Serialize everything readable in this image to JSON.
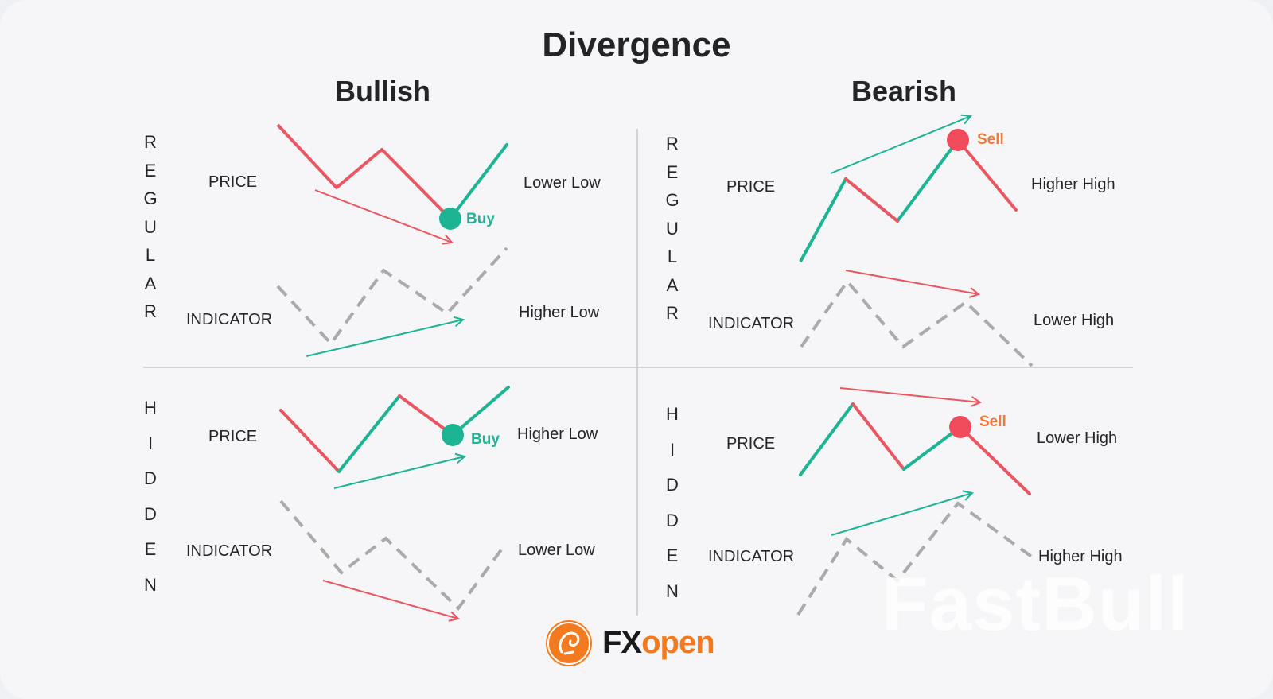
{
  "title": "Divergence",
  "columns": {
    "bullish": "Bullish",
    "bearish": "Bearish"
  },
  "rows": {
    "regular": "REGULAR",
    "hidden": "HIDDEN"
  },
  "axis_labels": {
    "price": "PRICE",
    "indicator": "INDICATOR"
  },
  "panels": {
    "bullish_regular": {
      "price_label": "Lower Low",
      "indicator_label": "Higher Low",
      "signal": "Buy"
    },
    "bearish_regular": {
      "price_label": "Higher High",
      "indicator_label": "Lower High",
      "signal": "Sell"
    },
    "bullish_hidden": {
      "price_label": "Higher Low",
      "indicator_label": "Lower Low",
      "signal": "Buy"
    },
    "bearish_hidden": {
      "price_label": "Lower High",
      "indicator_label": "Higher High",
      "signal": "Sell"
    }
  },
  "colors": {
    "up": "#1db494",
    "down": "#ea5662",
    "indicator": "#aaaaaa",
    "sell_dot": "#f24b5c",
    "buy_dot": "#1db494"
  },
  "branding": {
    "logo_fx": "FX",
    "logo_open": "open",
    "watermark": "FastBull",
    "logo_icon": "fxopen-dragon-icon"
  }
}
